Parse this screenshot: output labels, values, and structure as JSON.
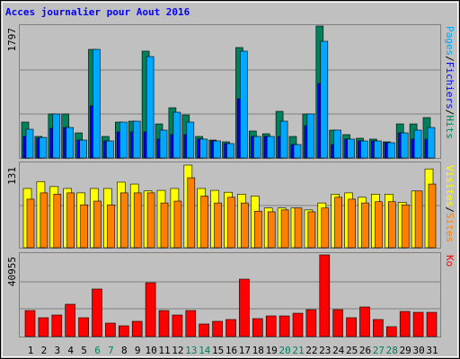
{
  "chart_data": [
    {
      "type": "bar",
      "title": "Acces journalier pour Aout 2016",
      "ylim": [
        0,
        1797
      ],
      "yticks": [
        1797
      ],
      "legend_separator": "/",
      "series": [
        {
          "name": "Hits",
          "color": "#00805c",
          "values": [
            489,
            293,
            599,
            599,
            342,
            1479,
            293,
            489,
            501,
            1455,
            464,
            684,
            586,
            293,
            244,
            220,
            1504,
            367,
            330,
            635,
            293,
            599,
            1797,
            379,
            318,
            269,
            257,
            220,
            464,
            464,
            550
          ]
        },
        {
          "name": "Fichiers",
          "color": "#0000ff",
          "values": [
            293,
            270,
            403,
            415,
            244,
            709,
            232,
            354,
            354,
            354,
            257,
            318,
            318,
            257,
            232,
            196,
            806,
            293,
            293,
            293,
            183,
            440,
            1014,
            183,
            257,
            232,
            232,
            208,
            342,
            257,
            257
          ]
        },
        {
          "name": "Pages",
          "color": "#00a8ff",
          "values": [
            391,
            280,
            599,
            415,
            244,
            1479,
            232,
            489,
            501,
            1381,
            379,
            623,
            489,
            257,
            232,
            196,
            1455,
            293,
            293,
            501,
            183,
            599,
            1589,
            379,
            257,
            232,
            232,
            208,
            342,
            379,
            415
          ]
        }
      ]
    },
    {
      "type": "bar",
      "ylim": [
        0,
        131
      ],
      "yticks": [
        131
      ],
      "legend_separator": "/",
      "series": [
        {
          "name": "Sites",
          "color": "#ff8000",
          "values": [
            77,
            87,
            85,
            87,
            68,
            74,
            68,
            87,
            87,
            87,
            71,
            74,
            111,
            82,
            71,
            80,
            71,
            58,
            57,
            60,
            63,
            57,
            63,
            80,
            77,
            71,
            73,
            73,
            68,
            90,
            101
          ]
        },
        {
          "name": "Visites",
          "color": "#ffff00",
          "values": [
            94,
            105,
            97,
            94,
            87,
            94,
            94,
            104,
            101,
            90,
            91,
            94,
            131,
            94,
            91,
            88,
            85,
            82,
            63,
            63,
            63,
            60,
            71,
            85,
            87,
            80,
            85,
            85,
            72,
            90,
            125
          ]
        }
      ]
    },
    {
      "type": "bar",
      "ylim": [
        0,
        40955
      ],
      "yticks": [
        40955
      ],
      "categories": [
        "1",
        "2",
        "3",
        "4",
        "5",
        "6",
        "7",
        "8",
        "9",
        "10",
        "11",
        "12",
        "13",
        "14",
        "15",
        "16",
        "17",
        "18",
        "19",
        "20",
        "21",
        "22",
        "23",
        "24",
        "25",
        "26",
        "27",
        "28",
        "29",
        "30",
        "31"
      ],
      "category_colors": [
        "#000000",
        "#000000",
        "#000000",
        "#000000",
        "#000000",
        "#00805c",
        "#00805c",
        "#000000",
        "#000000",
        "#000000",
        "#000000",
        "#000000",
        "#00805c",
        "#00805c",
        "#000000",
        "#000000",
        "#000000",
        "#000000",
        "#000000",
        "#00805c",
        "#00805c",
        "#000000",
        "#000000",
        "#000000",
        "#000000",
        "#000000",
        "#00805c",
        "#00805c",
        "#000000",
        "#000000",
        "#000000"
      ],
      "series": [
        {
          "name": "Ko",
          "color": "#ff0000",
          "values": [
            13050,
            9450,
            10800,
            16200,
            9450,
            23850,
            6750,
            5400,
            7650,
            27000,
            13050,
            10800,
            13050,
            6300,
            7650,
            8550,
            28800,
            9000,
            10350,
            10350,
            11700,
            13500,
            40955,
            13500,
            9450,
            14850,
            8550,
            4950,
            12600,
            12150,
            12150
          ]
        }
      ]
    }
  ]
}
